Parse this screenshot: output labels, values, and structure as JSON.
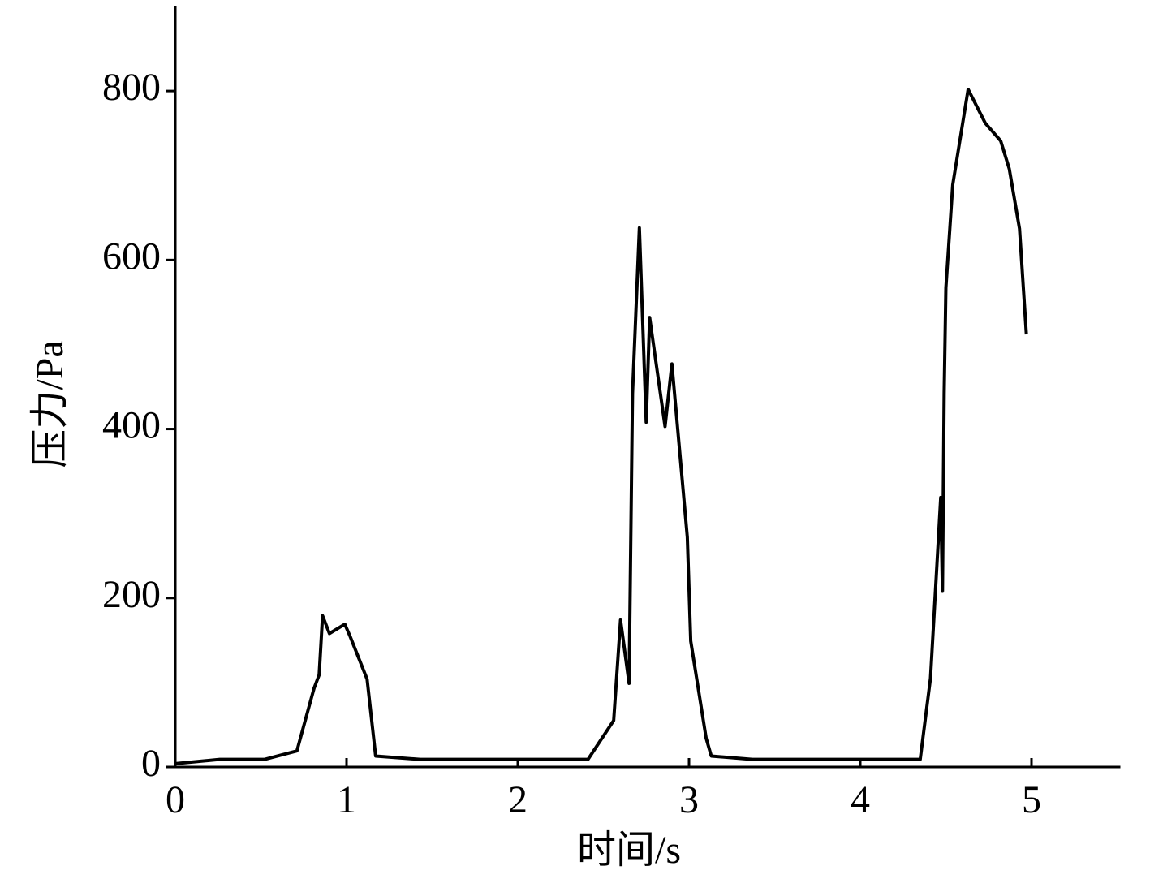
{
  "chart_data": {
    "type": "line",
    "x_label": "时间/s",
    "y_label": "压力/Pa",
    "x": [
      0,
      0.26,
      0.52,
      0.71,
      0.81,
      0.84,
      0.86,
      0.9,
      0.99,
      1.02,
      1.12,
      1.17,
      1.43,
      2.41,
      2.56,
      2.6,
      2.65,
      2.67,
      2.71,
      2.75,
      2.77,
      2.86,
      2.9,
      2.99,
      3.01,
      3.1,
      3.13,
      3.37,
      4.35,
      4.41,
      4.47,
      4.48,
      4.49,
      4.5,
      4.54,
      4.63,
      4.73,
      4.82,
      4.87,
      4.93,
      4.97
    ],
    "series": [
      {
        "color": "#000000",
        "values": [
          4,
          9,
          9,
          19,
          93,
          109,
          179,
          158,
          169,
          155,
          104,
          13,
          9,
          9,
          55,
          174,
          99,
          442,
          638,
          408,
          532,
          403,
          477,
          272,
          149,
          34,
          13,
          9,
          9,
          105,
          319,
          208,
          443,
          567,
          689,
          802,
          762,
          741,
          708,
          637,
          512
        ]
      }
    ],
    "xlim": [
      0,
      5.5
    ],
    "ylim": [
      0,
      900
    ],
    "xticks": [
      0,
      1,
      2,
      3,
      4,
      5
    ],
    "yticks": [
      0,
      200,
      400,
      600,
      800
    ]
  }
}
